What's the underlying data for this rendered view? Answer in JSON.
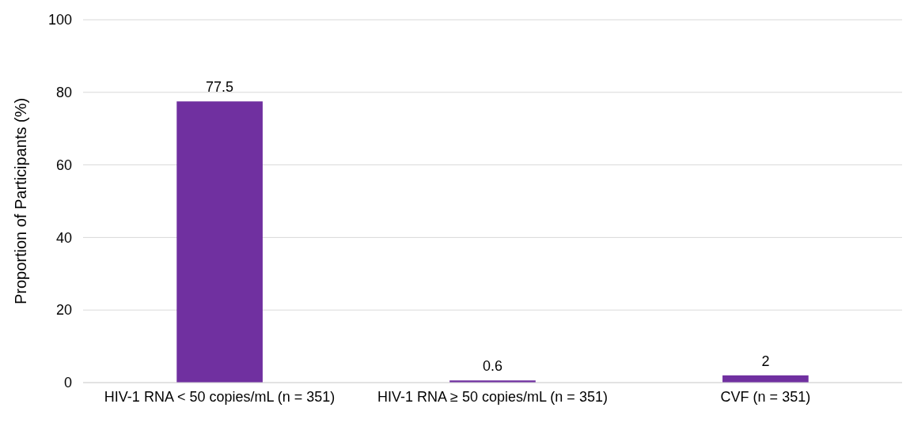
{
  "chart_data": {
    "type": "bar",
    "ylabel": "Proportion of Participants (%)",
    "categories": [
      "HIV-1 RNA < 50 copies/mL (n = 351)",
      "HIV-1 RNA ≥ 50 copies/mL (n = 351)",
      "CVF (n = 351)"
    ],
    "values": [
      77.5,
      0.6,
      2
    ],
    "color": "#7030a0",
    "data_labels": true,
    "ylim": [
      0,
      100
    ],
    "yticks": [
      0,
      20,
      40,
      60,
      80,
      100
    ],
    "grid": "y"
  }
}
